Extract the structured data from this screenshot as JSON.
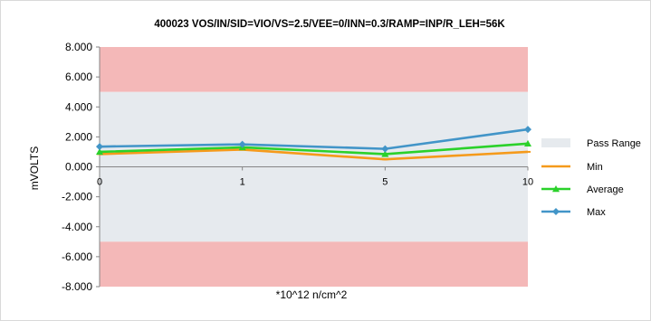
{
  "chart_data": {
    "type": "line",
    "title": "400023  VOS/IN/SID=VIO/VS=2.5/VEE=0/INN=0.3/RAMP=INP/R_LEH=56K",
    "xlabel": "*10^12 n/cm^2",
    "ylabel": "mVOLTS",
    "categories": [
      "0",
      "1",
      "5",
      "10"
    ],
    "ylim": [
      -8,
      8
    ],
    "yticks": [
      "8.000",
      "6.000",
      "4.000",
      "2.000",
      "0.000",
      "-2.000",
      "-4.000",
      "-6.000",
      "-8.000"
    ],
    "ytick_values": [
      8,
      6,
      4,
      2,
      0,
      -2,
      -4,
      -6,
      -8
    ],
    "pass_range": [
      -5,
      5
    ],
    "fail_color": "#f4b8b8",
    "pass_color": "#e6eaee",
    "legend_position": "right",
    "legend": {
      "pass_range_label": "Pass Range"
    },
    "series": [
      {
        "name": "Min",
        "color": "#f59a1b",
        "marker": "line",
        "values": [
          0.85,
          1.15,
          0.5,
          1.0
        ]
      },
      {
        "name": "Average",
        "color": "#2bd12b",
        "marker": "triangle",
        "values": [
          1.0,
          1.3,
          0.85,
          1.55
        ]
      },
      {
        "name": "Max",
        "color": "#4295c8",
        "marker": "diamond",
        "values": [
          1.35,
          1.5,
          1.2,
          2.5
        ]
      }
    ]
  }
}
